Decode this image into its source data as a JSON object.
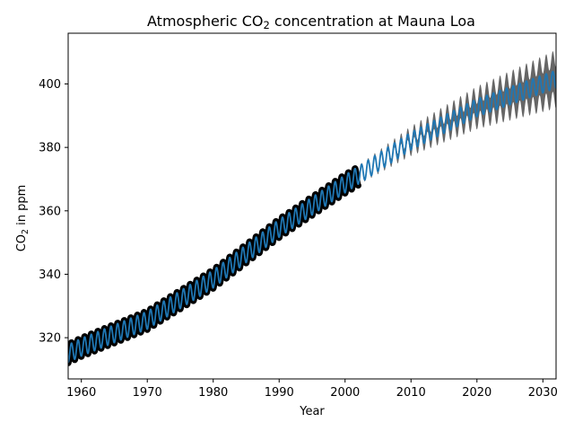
{
  "chart_data": {
    "type": "line",
    "title": "Atmospheric CO₂ concentration at Mauna Loa",
    "xlabel": "Year",
    "ylabel": "CO₂ in ppm",
    "xlim": [
      1958,
      2032
    ],
    "ylim": [
      307,
      416
    ],
    "x_ticks": [
      1960,
      1970,
      1980,
      1990,
      2000,
      2010,
      2020,
      2030
    ],
    "y_ticks": [
      320,
      340,
      360,
      380,
      400
    ],
    "grid": false,
    "legend": "none",
    "series": [
      {
        "kind": "observed",
        "style": "thick black",
        "x_range": [
          1958,
          2002
        ],
        "trend_points": [
          [
            1958,
            315.0
          ],
          [
            1960,
            317.0
          ],
          [
            1970,
            325.5
          ],
          [
            1980,
            338.5
          ],
          [
            1990,
            354.5
          ],
          [
            2000,
            368.5
          ],
          [
            2002,
            371.0
          ]
        ],
        "seasonal_amplitude": 3.0,
        "period_years": 1
      },
      {
        "kind": "prediction",
        "style": "blue line",
        "x_range": [
          1958,
          2032
        ],
        "trend_points": [
          [
            1958,
            315.0
          ],
          [
            1960,
            317.0
          ],
          [
            1970,
            325.5
          ],
          [
            1980,
            338.5
          ],
          [
            1990,
            354.5
          ],
          [
            2000,
            368.5
          ],
          [
            2010,
            382.0
          ],
          [
            2020,
            392.5
          ],
          [
            2030,
            400.0
          ],
          [
            2032,
            401.5
          ]
        ],
        "seasonal_amplitude": 2.8,
        "period_years": 1
      },
      {
        "kind": "uncertainty band",
        "style": "gray fill",
        "x_range": [
          2002,
          2032
        ],
        "band_halfwidth_start": 0.3,
        "band_halfwidth_end": 6.5
      }
    ],
    "colors": {
      "observed": "#000000",
      "prediction": "#1f77b4",
      "band": "#000000",
      "band_opacity": 0.6
    }
  }
}
